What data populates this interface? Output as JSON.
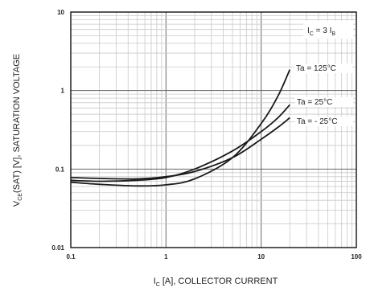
{
  "chart_data": {
    "type": "line",
    "x_scale": "log",
    "y_scale": "log",
    "xlim": [
      0.1,
      100
    ],
    "ylim": [
      0.01,
      10
    ],
    "grid": true,
    "x_ticks": [
      "0.1",
      "1",
      "10",
      "100"
    ],
    "y_ticks": [
      "10",
      "1",
      "0.1",
      "0.01"
    ],
    "xlabel": {
      "main": "I",
      "sub": "C",
      "rest": " [A], COLLECTOR CURRENT"
    },
    "ylabel": {
      "main": "V",
      "sub": "CE",
      "rest": "(SAT) [V], SATURATION VOLTAGE"
    },
    "condition": {
      "main": "I",
      "sub1": "C",
      "mid": " = 3 I",
      "sub2": "B"
    },
    "series": [
      {
        "name": "Ta = 125°C",
        "x": [
          0.1,
          0.2,
          0.5,
          1,
          2,
          5,
          10,
          15,
          20
        ],
        "y": [
          0.068,
          0.064,
          0.061,
          0.063,
          0.075,
          0.14,
          0.38,
          0.85,
          1.85
        ]
      },
      {
        "name": "Ta = 25°C",
        "x": [
          0.1,
          0.2,
          0.5,
          1,
          2,
          5,
          10,
          15,
          20
        ],
        "y": [
          0.072,
          0.07,
          0.072,
          0.078,
          0.1,
          0.17,
          0.3,
          0.45,
          0.66
        ]
      },
      {
        "name": "Ta = - 25°C",
        "x": [
          0.1,
          0.2,
          0.5,
          1,
          2,
          5,
          10,
          15,
          20
        ],
        "y": [
          0.078,
          0.076,
          0.075,
          0.08,
          0.093,
          0.14,
          0.24,
          0.34,
          0.45
        ]
      }
    ]
  }
}
